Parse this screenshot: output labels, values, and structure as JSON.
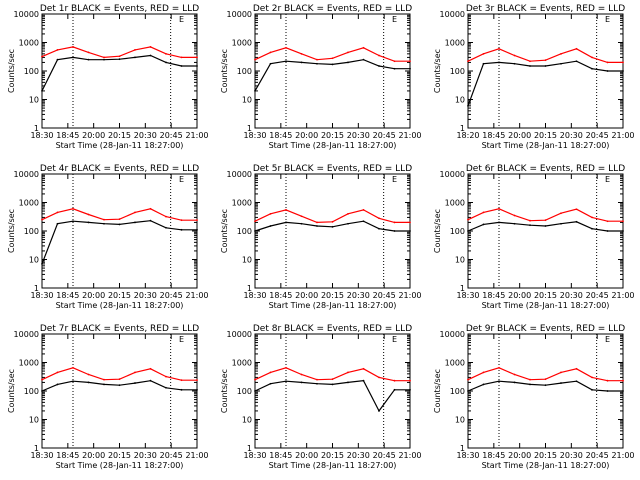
{
  "colors": {
    "events": "#000000",
    "lld": "#ff0000",
    "axis": "#000000",
    "background": "#ffffff"
  },
  "x_tick_labels": [
    "18:30",
    "18:45",
    "20:00",
    "20:15",
    "20:30",
    "20:45",
    "21:00"
  ],
  "x_tick_labels_alt": [
    "18:20",
    "18:45",
    "20:00",
    "20:15",
    "20:30",
    "20:45",
    "21:00"
  ],
  "y_tick_labels": [
    "1",
    "10",
    "100",
    "1000",
    "10000"
  ],
  "xlabel": "Start Time (28-Jan-11 18:27:00)",
  "ylabel": "Counts/sec",
  "marker_label": "E",
  "chart_data": [
    {
      "type": "line",
      "title": "Det 1r BLACK = Events, RED = LLD",
      "x_ticks": "x_tick_labels",
      "yscale": "log",
      "ylim": [
        1,
        10000
      ],
      "xlim": [
        0,
        100
      ],
      "vlines": [
        20,
        83
      ],
      "marker_x": 90,
      "series": [
        {
          "key": "lld",
          "x": [
            0,
            10,
            20,
            30,
            40,
            50,
            60,
            70,
            80,
            90,
            100
          ],
          "y": [
            320,
            550,
            700,
            450,
            300,
            330,
            550,
            700,
            400,
            300,
            300
          ]
        },
        {
          "key": "events",
          "x": [
            0,
            10,
            20,
            30,
            40,
            50,
            60,
            70,
            80,
            90,
            100
          ],
          "y": [
            20,
            250,
            300,
            250,
            250,
            260,
            300,
            350,
            200,
            150,
            150
          ]
        }
      ]
    },
    {
      "type": "line",
      "title": "Det 2r BLACK = Events, RED = LLD",
      "x_ticks": "x_tick_labels",
      "yscale": "log",
      "ylim": [
        1,
        10000
      ],
      "xlim": [
        0,
        100
      ],
      "vlines": [
        20,
        83
      ],
      "marker_x": 90,
      "series": [
        {
          "key": "lld",
          "x": [
            0,
            10,
            20,
            30,
            40,
            50,
            60,
            70,
            80,
            90,
            100
          ],
          "y": [
            250,
            450,
            650,
            400,
            250,
            280,
            450,
            650,
            350,
            220,
            220
          ]
        },
        {
          "key": "events",
          "x": [
            0,
            10,
            20,
            30,
            40,
            50,
            60,
            70,
            80,
            90,
            100
          ],
          "y": [
            20,
            180,
            220,
            200,
            180,
            170,
            200,
            250,
            150,
            120,
            120
          ]
        }
      ]
    },
    {
      "type": "line",
      "title": "Det 3r BLACK = Events, RED = LLD",
      "x_ticks": "x_tick_labels_alt",
      "yscale": "log",
      "ylim": [
        1,
        10000
      ],
      "xlim": [
        0,
        100
      ],
      "vlines": [
        20,
        83
      ],
      "marker_x": 90,
      "series": [
        {
          "key": "lld",
          "x": [
            0,
            10,
            20,
            30,
            40,
            50,
            60,
            70,
            80,
            90,
            100
          ],
          "y": [
            220,
            400,
            600,
            350,
            220,
            240,
            400,
            600,
            300,
            200,
            200
          ]
        },
        {
          "key": "events",
          "x": [
            0,
            10,
            20,
            30,
            40,
            50,
            60,
            70,
            80,
            90,
            100
          ],
          "y": [
            6,
            180,
            200,
            180,
            150,
            150,
            180,
            220,
            120,
            100,
            100
          ]
        }
      ]
    },
    {
      "type": "line",
      "title": "Det 4r BLACK = Events, RED = LLD",
      "x_ticks": "x_tick_labels",
      "yscale": "log",
      "ylim": [
        1,
        10000
      ],
      "xlim": [
        0,
        100
      ],
      "vlines": [
        20,
        83
      ],
      "marker_x": 90,
      "series": [
        {
          "key": "lld",
          "x": [
            0,
            10,
            20,
            30,
            40,
            50,
            60,
            70,
            80,
            90,
            100
          ],
          "y": [
            250,
            450,
            600,
            380,
            250,
            260,
            450,
            600,
            320,
            240,
            240
          ]
        },
        {
          "key": "events",
          "x": [
            0,
            10,
            20,
            30,
            40,
            50,
            60,
            70,
            80,
            90,
            100
          ],
          "y": [
            7,
            180,
            220,
            200,
            180,
            170,
            200,
            230,
            130,
            110,
            110
          ]
        }
      ]
    },
    {
      "type": "line",
      "title": "Det 5r BLACK = Events, RED = LLD",
      "x_ticks": "x_tick_labels",
      "yscale": "log",
      "ylim": [
        1,
        10000
      ],
      "xlim": [
        0,
        100
      ],
      "vlines": [
        20,
        83
      ],
      "marker_x": 90,
      "series": [
        {
          "key": "lld",
          "x": [
            0,
            10,
            20,
            30,
            40,
            50,
            60,
            70,
            80,
            90,
            100
          ],
          "y": [
            220,
            400,
            550,
            330,
            200,
            210,
            400,
            550,
            280,
            200,
            200
          ]
        },
        {
          "key": "events",
          "x": [
            0,
            10,
            20,
            30,
            40,
            50,
            60,
            70,
            80,
            90,
            100
          ],
          "y": [
            100,
            150,
            200,
            180,
            150,
            140,
            180,
            220,
            120,
            100,
            100
          ]
        }
      ]
    },
    {
      "type": "line",
      "title": "Det 6r BLACK = Events, RED = LLD",
      "x_ticks": "x_tick_labels",
      "yscale": "log",
      "ylim": [
        1,
        10000
      ],
      "xlim": [
        0,
        100
      ],
      "vlines": [
        20,
        83
      ],
      "marker_x": 90,
      "series": [
        {
          "key": "lld",
          "x": [
            0,
            10,
            20,
            30,
            40,
            50,
            60,
            70,
            80,
            90,
            100
          ],
          "y": [
            250,
            450,
            600,
            350,
            230,
            240,
            420,
            580,
            300,
            220,
            220
          ]
        },
        {
          "key": "events",
          "x": [
            0,
            10,
            20,
            30,
            40,
            50,
            60,
            70,
            80,
            90,
            100
          ],
          "y": [
            100,
            170,
            200,
            180,
            160,
            150,
            180,
            210,
            120,
            100,
            100
          ]
        }
      ]
    },
    {
      "type": "line",
      "title": "Det 7r BLACK = Events, RED = LLD",
      "x_ticks": "x_tick_labels",
      "yscale": "log",
      "ylim": [
        1,
        10000
      ],
      "xlim": [
        0,
        100
      ],
      "vlines": [
        20,
        83
      ],
      "marker_x": 90,
      "series": [
        {
          "key": "lld",
          "x": [
            0,
            10,
            20,
            30,
            40,
            50,
            60,
            70,
            80,
            90,
            100
          ],
          "y": [
            250,
            450,
            650,
            380,
            250,
            260,
            450,
            600,
            320,
            240,
            240
          ]
        },
        {
          "key": "events",
          "x": [
            0,
            10,
            20,
            30,
            40,
            50,
            60,
            70,
            80,
            90,
            100
          ],
          "y": [
            100,
            170,
            220,
            200,
            170,
            160,
            190,
            230,
            130,
            110,
            110
          ]
        }
      ]
    },
    {
      "type": "line",
      "title": "Det 8r BLACK = Events, RED = LLD",
      "x_ticks": "x_tick_labels",
      "yscale": "log",
      "ylim": [
        1,
        10000
      ],
      "xlim": [
        0,
        100
      ],
      "vlines": [
        20,
        83
      ],
      "marker_x": 90,
      "series": [
        {
          "key": "lld",
          "x": [
            0,
            10,
            20,
            30,
            40,
            50,
            60,
            70,
            80,
            90,
            100
          ],
          "y": [
            250,
            450,
            650,
            380,
            250,
            260,
            450,
            600,
            300,
            230,
            230
          ]
        },
        {
          "key": "events",
          "x": [
            0,
            10,
            20,
            30,
            40,
            50,
            60,
            70,
            80,
            90,
            100
          ],
          "y": [
            100,
            180,
            220,
            200,
            180,
            170,
            200,
            230,
            20,
            110,
            110
          ]
        }
      ]
    },
    {
      "type": "line",
      "title": "Det 9r BLACK = Events, RED = LLD",
      "x_ticks": "x_tick_labels",
      "yscale": "log",
      "ylim": [
        1,
        10000
      ],
      "xlim": [
        0,
        100
      ],
      "vlines": [
        20,
        83
      ],
      "marker_x": 90,
      "series": [
        {
          "key": "lld",
          "x": [
            0,
            10,
            20,
            30,
            40,
            50,
            60,
            70,
            80,
            90,
            100
          ],
          "y": [
            250,
            450,
            650,
            380,
            250,
            260,
            450,
            600,
            300,
            230,
            230
          ]
        },
        {
          "key": "events",
          "x": [
            0,
            10,
            20,
            30,
            40,
            50,
            60,
            70,
            80,
            90,
            100
          ],
          "y": [
            100,
            170,
            220,
            200,
            170,
            160,
            190,
            220,
            110,
            100,
            100
          ]
        }
      ]
    }
  ]
}
